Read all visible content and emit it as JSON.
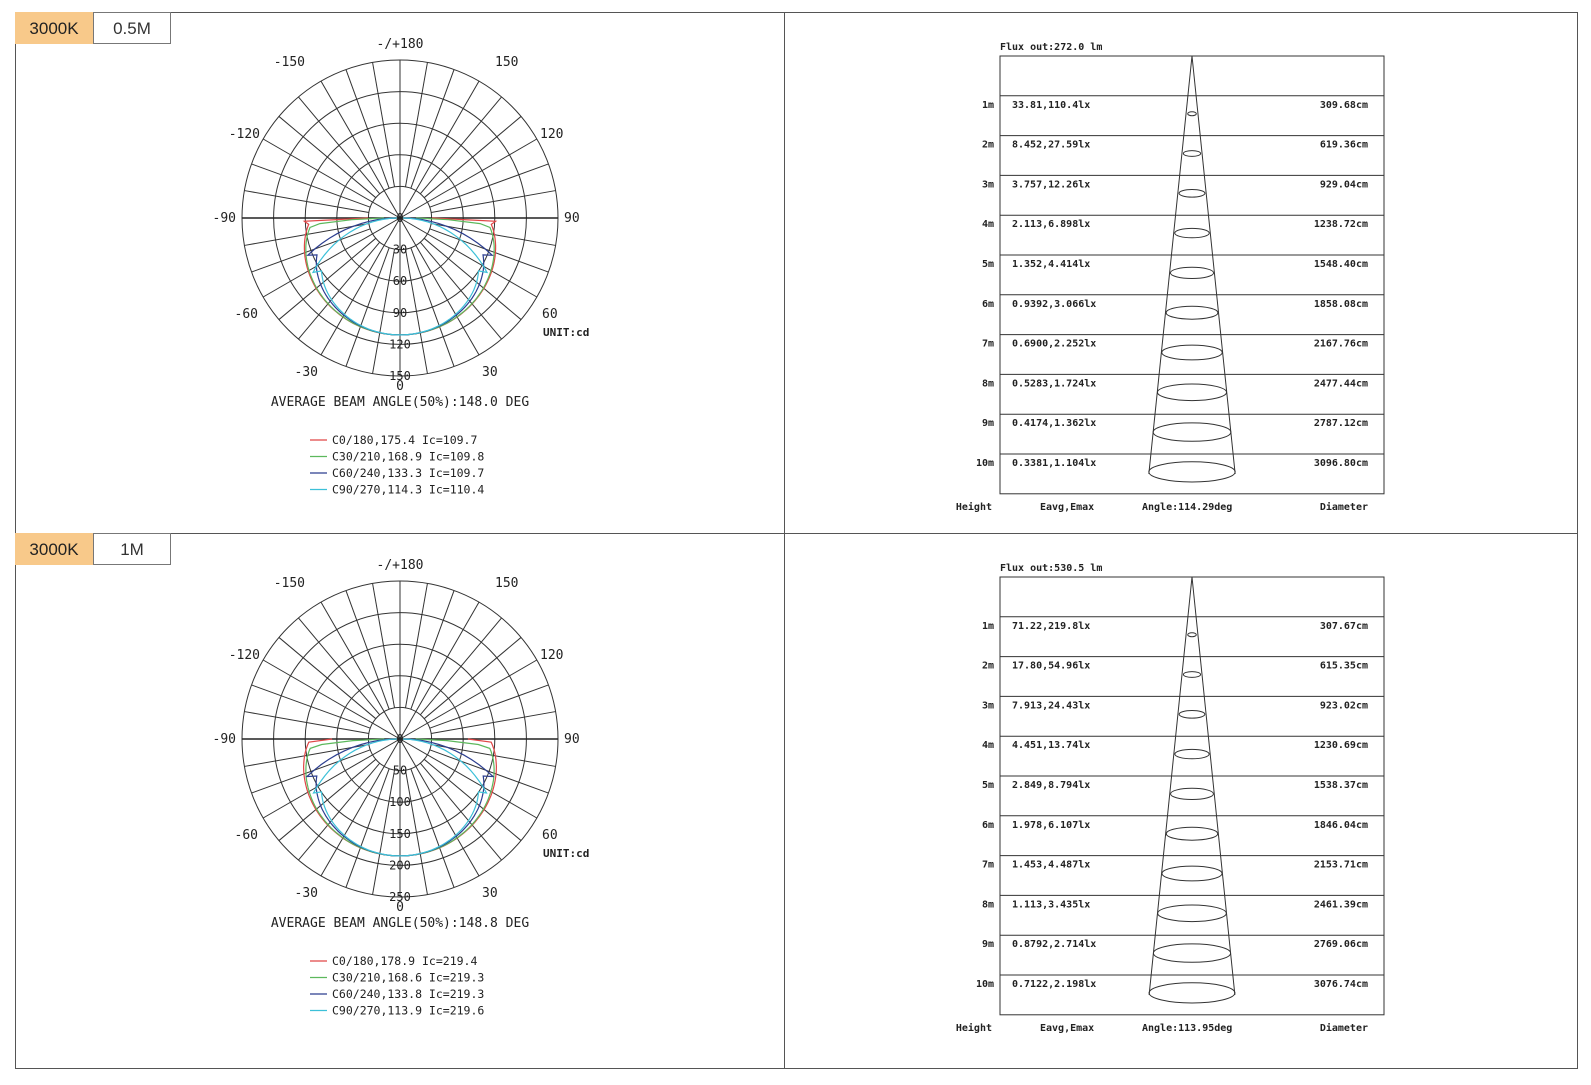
{
  "panels": [
    {
      "cct_tag": "3000K",
      "distance_tag": "0.5M",
      "polar": {
        "angle_labels": {
          "top": "-/+180",
          "m150": "-150",
          "p150": "150",
          "m120": "-120",
          "p120": "120",
          "m90": "-90",
          "p90": "90",
          "m60": "-60",
          "p60": "60",
          "m30": "-30",
          "p30": "30",
          "bottom": "0"
        },
        "center_label": "0",
        "radial_labels": [
          "30",
          "60",
          "90",
          "120",
          "150"
        ],
        "unit": "UNIT:cd",
        "beam_angle_text": "AVERAGE BEAM ANGLE(50%):148.0 DEG",
        "legend": [
          {
            "text": "C0/180,175.4  Ic=109.7",
            "color": "#e04646"
          },
          {
            "text": "C30/210,168.9  Ic=109.8",
            "color": "#5cb85c"
          },
          {
            "text": "C60/240,133.3  Ic=109.7",
            "color": "#2c3e8f"
          },
          {
            "text": "C90/270,114.3  Ic=110.4",
            "color": "#3cc0d8"
          }
        ]
      },
      "cone": {
        "flux_text": "Flux out:272.0 lm",
        "rows": [
          {
            "height": "1m",
            "eavg_emax": "33.81,110.4lx",
            "diameter": "309.68cm"
          },
          {
            "height": "2m",
            "eavg_emax": "8.452,27.59lx",
            "diameter": "619.36cm"
          },
          {
            "height": "3m",
            "eavg_emax": "3.757,12.26lx",
            "diameter": "929.04cm"
          },
          {
            "height": "4m",
            "eavg_emax": "2.113,6.898lx",
            "diameter": "1238.72cm"
          },
          {
            "height": "5m",
            "eavg_emax": "1.352,4.414lx",
            "diameter": "1548.40cm"
          },
          {
            "height": "6m",
            "eavg_emax": "0.9392,3.066lx",
            "diameter": "1858.08cm"
          },
          {
            "height": "7m",
            "eavg_emax": "0.6900,2.252lx",
            "diameter": "2167.76cm"
          },
          {
            "height": "8m",
            "eavg_emax": "0.5283,1.724lx",
            "diameter": "2477.44cm"
          },
          {
            "height": "9m",
            "eavg_emax": "0.4174,1.362lx",
            "diameter": "2787.12cm"
          },
          {
            "height": "10m",
            "eavg_emax": "0.3381,1.104lx",
            "diameter": "3096.80cm"
          }
        ],
        "footer": {
          "height": "Height",
          "eavg": "Eavg,Emax",
          "angle": "Angle:114.29deg",
          "diameter": "Diameter"
        }
      }
    },
    {
      "cct_tag": "3000K",
      "distance_tag": "1M",
      "polar": {
        "angle_labels": {
          "top": "-/+180",
          "m150": "-150",
          "p150": "150",
          "m120": "-120",
          "p120": "120",
          "m90": "-90",
          "p90": "90",
          "m60": "-60",
          "p60": "60",
          "m30": "-30",
          "p30": "30",
          "bottom": "0"
        },
        "center_label": "0",
        "radial_labels": [
          "50",
          "100",
          "150",
          "200",
          "250"
        ],
        "unit": "UNIT:cd",
        "beam_angle_text": "AVERAGE BEAM ANGLE(50%):148.8 DEG",
        "legend": [
          {
            "text": "C0/180,178.9  Ic=219.4",
            "color": "#e04646"
          },
          {
            "text": "C30/210,168.6  Ic=219.3",
            "color": "#5cb85c"
          },
          {
            "text": "C60/240,133.8  Ic=219.3",
            "color": "#2c3e8f"
          },
          {
            "text": "C90/270,113.9  Ic=219.6",
            "color": "#3cc0d8"
          }
        ]
      },
      "cone": {
        "flux_text": "Flux out:530.5 lm",
        "rows": [
          {
            "height": "1m",
            "eavg_emax": "71.22,219.8lx",
            "diameter": "307.67cm"
          },
          {
            "height": "2m",
            "eavg_emax": "17.80,54.96lx",
            "diameter": "615.35cm"
          },
          {
            "height": "3m",
            "eavg_emax": "7.913,24.43lx",
            "diameter": "923.02cm"
          },
          {
            "height": "4m",
            "eavg_emax": "4.451,13.74lx",
            "diameter": "1230.69cm"
          },
          {
            "height": "5m",
            "eavg_emax": "2.849,8.794lx",
            "diameter": "1538.37cm"
          },
          {
            "height": "6m",
            "eavg_emax": "1.978,6.107lx",
            "diameter": "1846.04cm"
          },
          {
            "height": "7m",
            "eavg_emax": "1.453,4.487lx",
            "diameter": "2153.71cm"
          },
          {
            "height": "8m",
            "eavg_emax": "1.113,3.435lx",
            "diameter": "2461.39cm"
          },
          {
            "height": "9m",
            "eavg_emax": "0.8792,2.714lx",
            "diameter": "2769.06cm"
          },
          {
            "height": "10m",
            "eavg_emax": "0.7122,2.198lx",
            "diameter": "3076.74cm"
          }
        ],
        "footer": {
          "height": "Height",
          "eavg": "Eavg,Emax",
          "angle": "Angle:113.95deg",
          "diameter": "Diameter"
        }
      }
    }
  ],
  "chart_data": [
    {
      "type": "polar",
      "unit": "cd",
      "radial_ticks": [
        30,
        60,
        90,
        120,
        150
      ],
      "beam_angle_deg": 148.0,
      "series": [
        {
          "name": "C0/180",
          "beam_angle_deg": 175.4,
          "ic": 109.7,
          "color": "#e04646"
        },
        {
          "name": "C30/210",
          "beam_angle_deg": 168.9,
          "ic": 109.8,
          "color": "#5cb85c"
        },
        {
          "name": "C60/240",
          "beam_angle_deg": 133.3,
          "ic": 109.7,
          "color": "#2c3e8f"
        },
        {
          "name": "C90/270",
          "beam_angle_deg": 114.3,
          "ic": 110.4,
          "color": "#3cc0d8"
        }
      ]
    },
    {
      "type": "table",
      "flux_lm": 272.0,
      "angle_deg": 114.29,
      "columns": [
        "Height",
        "Eavg,Emax",
        "Diameter"
      ],
      "rows": [
        [
          "1m",
          "33.81,110.4lx",
          "309.68cm"
        ],
        [
          "2m",
          "8.452,27.59lx",
          "619.36cm"
        ],
        [
          "3m",
          "3.757,12.26lx",
          "929.04cm"
        ],
        [
          "4m",
          "2.113,6.898lx",
          "1238.72cm"
        ],
        [
          "5m",
          "1.352,4.414lx",
          "1548.40cm"
        ],
        [
          "6m",
          "0.9392,3.066lx",
          "1858.08cm"
        ],
        [
          "7m",
          "0.6900,2.252lx",
          "2167.76cm"
        ],
        [
          "8m",
          "0.5283,1.724lx",
          "2477.44cm"
        ],
        [
          "9m",
          "0.4174,1.362lx",
          "2787.12cm"
        ],
        [
          "10m",
          "0.3381,1.104lx",
          "3096.80cm"
        ]
      ]
    },
    {
      "type": "polar",
      "unit": "cd",
      "radial_ticks": [
        50,
        100,
        150,
        200,
        250
      ],
      "beam_angle_deg": 148.8,
      "series": [
        {
          "name": "C0/180",
          "beam_angle_deg": 178.9,
          "ic": 219.4,
          "color": "#e04646"
        },
        {
          "name": "C30/210",
          "beam_angle_deg": 168.6,
          "ic": 219.3,
          "color": "#5cb85c"
        },
        {
          "name": "C60/240",
          "beam_angle_deg": 133.8,
          "ic": 219.3,
          "color": "#2c3e8f"
        },
        {
          "name": "C90/270",
          "beam_angle_deg": 113.9,
          "ic": 219.6,
          "color": "#3cc0d8"
        }
      ]
    },
    {
      "type": "table",
      "flux_lm": 530.5,
      "angle_deg": 113.95,
      "columns": [
        "Height",
        "Eavg,Emax",
        "Diameter"
      ],
      "rows": [
        [
          "1m",
          "71.22,219.8lx",
          "307.67cm"
        ],
        [
          "2m",
          "17.80,54.96lx",
          "615.35cm"
        ],
        [
          "3m",
          "7.913,24.43lx",
          "923.02cm"
        ],
        [
          "4m",
          "4.451,13.74lx",
          "1230.69cm"
        ],
        [
          "5m",
          "2.849,8.794lx",
          "1538.37cm"
        ],
        [
          "6m",
          "1.978,6.107lx",
          "1846.04cm"
        ],
        [
          "7m",
          "1.453,4.487lx",
          "2153.71cm"
        ],
        [
          "8m",
          "1.113,3.435lx",
          "2461.39cm"
        ],
        [
          "9m",
          "0.8792,2.714lx",
          "2769.06cm"
        ],
        [
          "10m",
          "0.7122,2.198lx",
          "3076.74cm"
        ]
      ]
    }
  ]
}
